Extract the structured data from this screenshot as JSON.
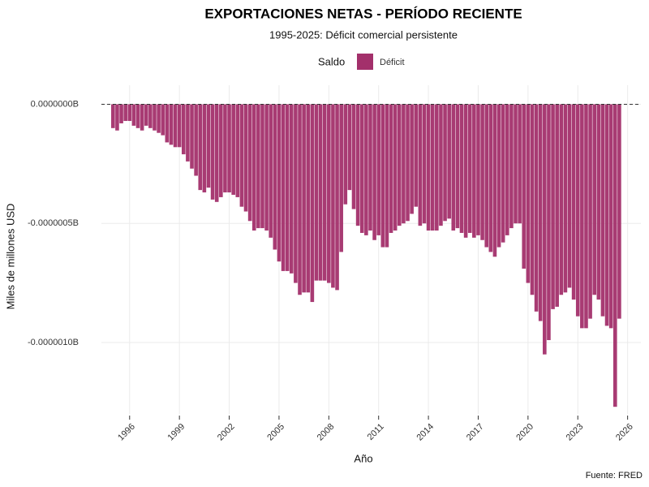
{
  "chart_data": {
    "type": "bar",
    "title": "EXPORTACIONES NETAS - PERÍODO RECIENTE",
    "subtitle": "1995-2025: Déficit comercial persistente",
    "legend_title": "Saldo",
    "x_label": "Año",
    "y_label": "Miles de millones USD",
    "caption": "Fuente: FRED",
    "legend_position": "top",
    "grid": true,
    "hline": 0,
    "x": [
      1995,
      1995.25,
      1995.5,
      1995.75,
      1996,
      1996.25,
      1996.5,
      1996.75,
      1997,
      1997.25,
      1997.5,
      1997.75,
      1998,
      1998.25,
      1998.5,
      1998.75,
      1999,
      1999.25,
      1999.5,
      1999.75,
      2000,
      2000.25,
      2000.5,
      2000.75,
      2001,
      2001.25,
      2001.5,
      2001.75,
      2002,
      2002.25,
      2002.5,
      2002.75,
      2003,
      2003.25,
      2003.5,
      2003.75,
      2004,
      2004.25,
      2004.5,
      2004.75,
      2005,
      2005.25,
      2005.5,
      2005.75,
      2006,
      2006.25,
      2006.5,
      2006.75,
      2007,
      2007.25,
      2007.5,
      2007.75,
      2008,
      2008.25,
      2008.5,
      2008.75,
      2009,
      2009.25,
      2009.5,
      2009.75,
      2010,
      2010.25,
      2010.5,
      2010.75,
      2011,
      2011.25,
      2011.5,
      2011.75,
      2012,
      2012.25,
      2012.5,
      2012.75,
      2013,
      2013.25,
      2013.5,
      2013.75,
      2014,
      2014.25,
      2014.5,
      2014.75,
      2015,
      2015.25,
      2015.5,
      2015.75,
      2016,
      2016.25,
      2016.5,
      2016.75,
      2017,
      2017.25,
      2017.5,
      2017.75,
      2018,
      2018.25,
      2018.5,
      2018.75,
      2019,
      2019.25,
      2019.5,
      2019.75,
      2020,
      2020.25,
      2020.5,
      2020.75,
      2021,
      2021.25,
      2021.5,
      2021.75,
      2022,
      2022.25,
      2022.5,
      2022.75,
      2023,
      2023.25,
      2023.5,
      2023.75,
      2024,
      2024.25,
      2024.5,
      2024.75,
      2025,
      2025.25,
      2025.5
    ],
    "series": [
      {
        "name": "Déficit",
        "color": "#a3306b",
        "values": [
          -1e-07,
          -1.1e-07,
          -8e-08,
          -7e-08,
          -7e-08,
          -9e-08,
          -1e-07,
          -1.1e-07,
          -9e-08,
          -1e-07,
          -1.1e-07,
          -1.2e-07,
          -1.3e-07,
          -1.6e-07,
          -1.7e-07,
          -1.8e-07,
          -1.8e-07,
          -2.1e-07,
          -2.4e-07,
          -2.7e-07,
          -3e-07,
          -3.6e-07,
          -3.7e-07,
          -3.5e-07,
          -4e-07,
          -4.1e-07,
          -3.9e-07,
          -3.7e-07,
          -3.7e-07,
          -3.8e-07,
          -3.9e-07,
          -4.3e-07,
          -4.5e-07,
          -4.9e-07,
          -5.3e-07,
          -5.2e-07,
          -5.2e-07,
          -5.3e-07,
          -5.6e-07,
          -6.1e-07,
          -6.6e-07,
          -7e-07,
          -7e-07,
          -7.1e-07,
          -7.5e-07,
          -8e-07,
          -7.9e-07,
          -7.9e-07,
          -8.3e-07,
          -7.4e-07,
          -7.4e-07,
          -7.4e-07,
          -7.5e-07,
          -7.7e-07,
          -7.8e-07,
          -6.2e-07,
          -4.2e-07,
          -3.6e-07,
          -4.4e-07,
          -5.1e-07,
          -5.4e-07,
          -5.5e-07,
          -5.3e-07,
          -5.7e-07,
          -5.5e-07,
          -6e-07,
          -6e-07,
          -5.4e-07,
          -5.3e-07,
          -5.1e-07,
          -5e-07,
          -4.9e-07,
          -4.6e-07,
          -4.3e-07,
          -5.1e-07,
          -5e-07,
          -5.3e-07,
          -5.3e-07,
          -5.3e-07,
          -5.1e-07,
          -4.9e-07,
          -4.8e-07,
          -5.3e-07,
          -5.2e-07,
          -5.4e-07,
          -5.6e-07,
          -5.4e-07,
          -5.6e-07,
          -5.5e-07,
          -5.7e-07,
          -6e-07,
          -6.2e-07,
          -6.4e-07,
          -6e-07,
          -5.8e-07,
          -5.5e-07,
          -5.2e-07,
          -5e-07,
          -5e-07,
          -6.9e-07,
          -7.5e-07,
          -8e-07,
          -8.7e-07,
          -9.1e-07,
          -1.05e-06,
          -9.9e-07,
          -8.6e-07,
          -8.5e-07,
          -8e-07,
          -7.9e-07,
          -7.7e-07,
          -8.2e-07,
          -8.9e-07,
          -9.4e-07,
          -9.4e-07,
          -9e-07,
          -8e-07,
          -8.2e-07,
          -8.9e-07,
          -9.3e-07,
          -9.4e-07,
          -1.27e-06,
          -9e-07
        ]
      }
    ],
    "xlim": [
      1994.3,
      2026.8
    ],
    "xticks": [
      1996,
      1999,
      2002,
      2005,
      2008,
      2011,
      2014,
      2017,
      2020,
      2023,
      2026
    ],
    "ylim": [
      -1.3e-06,
      8e-08
    ],
    "yticks": [
      {
        "value": 0,
        "label": "0.0000000B"
      },
      {
        "value": -5e-07,
        "label": "-0.0000005B"
      },
      {
        "value": -1e-06,
        "label": "-0.0000010B"
      }
    ]
  }
}
